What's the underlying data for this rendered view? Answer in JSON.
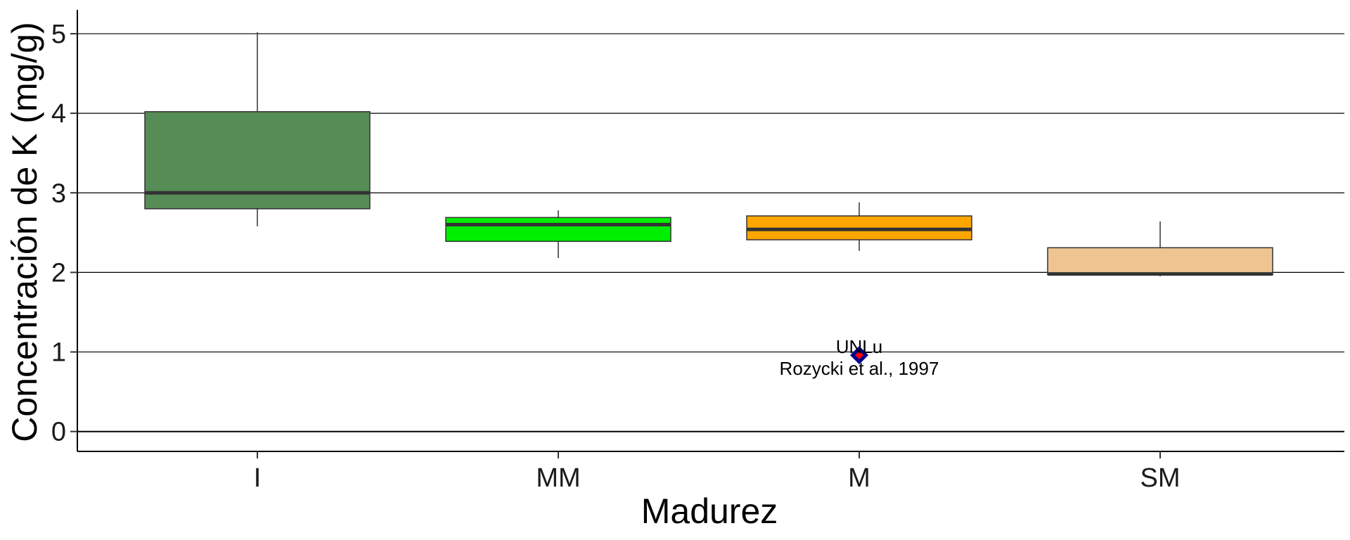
{
  "chart_data": {
    "type": "box",
    "xlabel": "Madurez",
    "ylabel": "Concentración de K (mg/g)",
    "categories": [
      "I",
      "MM",
      "M",
      "SM"
    ],
    "ylim": [
      -0.25,
      5.3
    ],
    "yticks": [
      0,
      1,
      2,
      3,
      4,
      5
    ],
    "grid": "horizontal major gridlines",
    "boxes": [
      {
        "category": "I",
        "min": 2.58,
        "q1": 2.8,
        "median": 3.0,
        "q3": 4.02,
        "max": 5.02,
        "color": "#568c55"
      },
      {
        "category": "MM",
        "min": 2.18,
        "q1": 2.39,
        "median": 2.6,
        "q3": 2.69,
        "max": 2.78,
        "color": "#00ee00"
      },
      {
        "category": "M",
        "min": 2.27,
        "q1": 2.41,
        "median": 2.54,
        "q3": 2.71,
        "max": 2.88,
        "color": "#ffa500"
      },
      {
        "category": "SM",
        "min": 1.95,
        "q1": 1.97,
        "median": 1.98,
        "q3": 2.31,
        "max": 2.64,
        "color": "#eec591"
      }
    ],
    "points": [
      {
        "category": "M",
        "value": 0.96,
        "label_above": "UNLu",
        "label_below": "Rozycki et al., 1997"
      }
    ],
    "colors": {
      "marker_outline": "#00008b",
      "marker_fill": "#ff0000",
      "median_line": "#333333"
    }
  }
}
